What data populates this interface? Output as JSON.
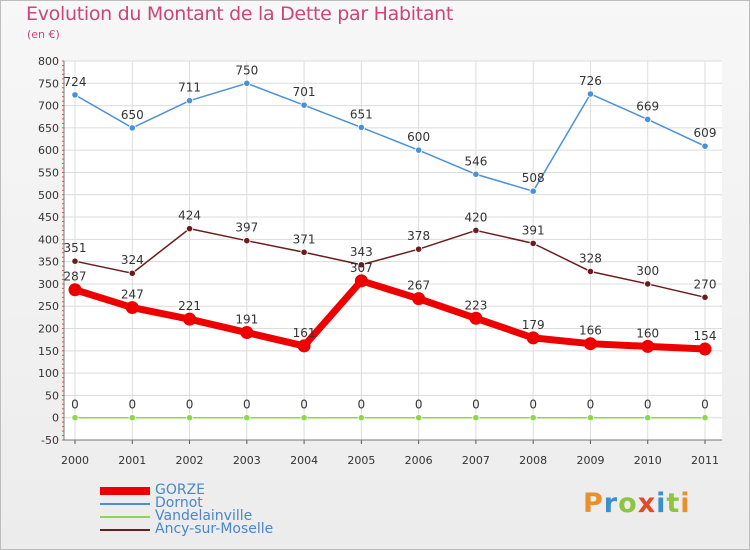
{
  "title": "Evolution du Montant de la Dette par Habitant",
  "subtitle": "(en €)",
  "brand": {
    "letters": [
      "P",
      "r",
      "o",
      "x",
      "i",
      "t",
      "i"
    ],
    "colors": [
      "#e8902a",
      "#3a8fd0",
      "#8cc63f",
      "#e04b2a",
      "#3a8fd0",
      "#8cc63f",
      "#e8902a"
    ]
  },
  "chart_data": {
    "type": "line",
    "x": [
      "2000",
      "2001",
      "2002",
      "2003",
      "2004",
      "2005",
      "2006",
      "2007",
      "2008",
      "2009",
      "2010",
      "2011"
    ],
    "ylim": [
      -50,
      800
    ],
    "yticks": [
      "-50",
      "0",
      "50",
      "100",
      "150",
      "200",
      "250",
      "300",
      "350",
      "400",
      "450",
      "500",
      "550",
      "600",
      "650",
      "700",
      "750",
      "800"
    ],
    "grid": true,
    "legend_position": "bottom-left",
    "series": [
      {
        "name": "Dornot",
        "color": "#4a90d9",
        "values": [
          724,
          650,
          711,
          750,
          701,
          651,
          600,
          546,
          508,
          726,
          669,
          609
        ]
      },
      {
        "name": "Ancy-sur-Moselle",
        "color": "#6b1d1d",
        "values": [
          351,
          324,
          424,
          397,
          371,
          343,
          378,
          420,
          391,
          328,
          300,
          270
        ]
      },
      {
        "name": "GORZE",
        "color": "#ee0000",
        "values": [
          287,
          247,
          221,
          191,
          161,
          307,
          267,
          223,
          179,
          166,
          160,
          154
        ]
      },
      {
        "name": "Vandelainville",
        "color": "#8ed64a",
        "values": [
          0,
          0,
          0,
          0,
          0,
          0,
          0,
          0,
          0,
          0,
          0,
          0
        ]
      }
    ],
    "legend": [
      {
        "name": "GORZE",
        "color": "#ee0000"
      },
      {
        "name": "Dornot",
        "color": "#4a90d9"
      },
      {
        "name": "Vandelainville",
        "color": "#8ed64a"
      },
      {
        "name": "Ancy-sur-Moselle",
        "color": "#6b1d1d"
      }
    ]
  }
}
